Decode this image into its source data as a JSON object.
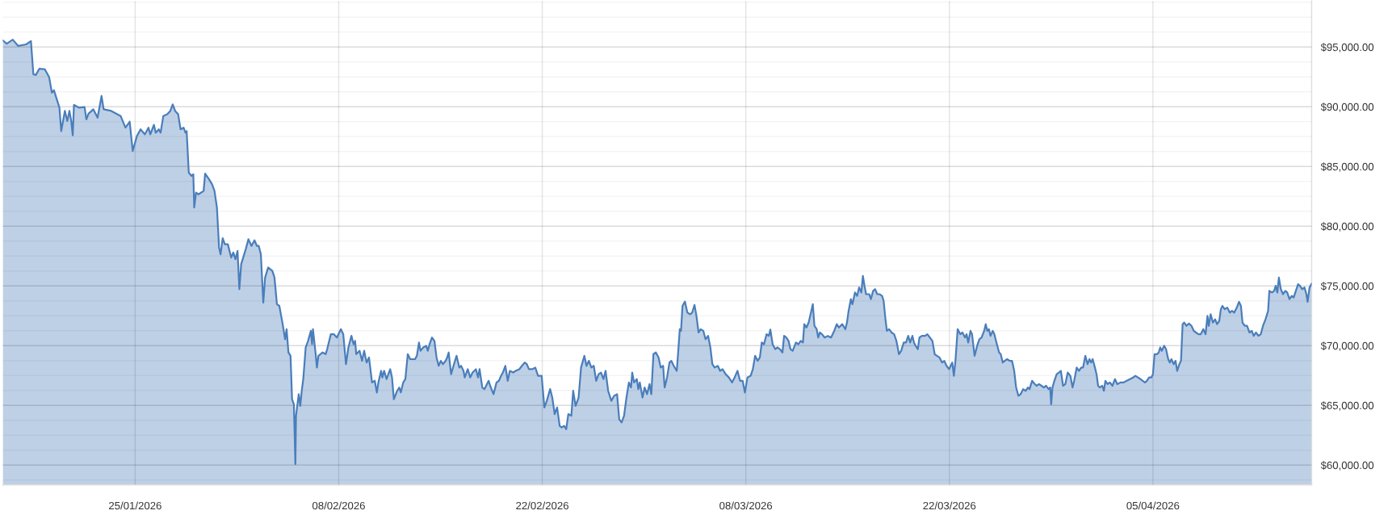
{
  "chart_data": {
    "type": "area",
    "x": [
      "2026-01-15T21:30",
      "2026-01-16T04:00",
      "2026-01-16T14:00",
      "2026-01-16T23:00",
      "2026-01-17T12:00",
      "2026-01-17T20:00",
      "2026-01-18T00:00",
      "2026-01-18T04:00",
      "2026-01-18T10:00",
      "2026-01-18T19:00",
      "2026-01-19T02:00",
      "2026-01-19T06:30",
      "2026-01-19T10:00",
      "2026-01-19T19:00",
      "2026-01-19T22:00",
      "2026-01-20T04:00",
      "2026-01-20T08:00",
      "2026-01-20T11:30",
      "2026-01-20T14:30",
      "2026-01-20T17:00",
      "2026-01-20T19:00",
      "2026-01-21T03:00",
      "2026-01-21T12:30",
      "2026-01-21T15:30",
      "2026-01-21T19:00",
      "2026-01-22T03:00",
      "2026-01-22T10:00",
      "2026-01-22T16:30",
      "2026-01-22T20:00",
      "2026-01-23T08:30",
      "2026-01-24T00:00",
      "2026-01-24T08:00",
      "2026-01-24T15:00",
      "2026-01-24T20:00",
      "2026-01-25T03:00",
      "2026-01-25T09:00",
      "2026-01-25T16:00",
      "2026-01-25T22:00",
      "2026-01-26T01:00",
      "2026-01-26T07:00",
      "2026-01-26T10:00",
      "2026-01-26T15:00",
      "2026-01-26T18:00",
      "2026-01-26T22:30",
      "2026-01-27T05:00",
      "2026-01-27T10:00",
      "2026-01-27T14:00",
      "2026-01-27T18:00",
      "2026-01-27T23:00",
      "2026-01-28T03:00",
      "2026-01-28T08:00",
      "2026-01-28T11:00",
      "2026-01-28T13:00",
      "2026-01-28T16:30",
      "2026-01-28T21:00",
      "2026-01-29T00:00",
      "2026-01-29T01:30",
      "2026-01-29T04:30",
      "2026-01-29T08:30",
      "2026-01-29T17:00",
      "2026-01-29T19:30",
      "2026-01-30T02:00",
      "2026-01-30T07:00",
      "2026-01-30T11:00",
      "2026-01-30T15:00",
      "2026-01-30T18:30",
      "2026-01-30T21:00",
      "2026-01-31T00:30",
      "2026-01-31T04:00",
      "2026-01-31T09:00",
      "2026-01-31T14:30",
      "2026-01-31T18:00",
      "2026-01-31T21:30",
      "2026-02-01T01:00",
      "2026-02-01T04:00",
      "2026-02-01T07:00",
      "2026-02-01T14:30",
      "2026-02-01T19:00",
      "2026-02-02T00:00",
      "2026-02-02T05:00",
      "2026-02-02T09:00",
      "2026-02-02T12:00",
      "2026-02-02T15:30",
      "2026-02-02T19:30",
      "2026-02-02T22:30",
      "2026-02-03T03:30",
      "2026-02-03T10:30",
      "2026-02-03T14:00",
      "2026-02-03T18:00",
      "2026-02-03T22:00",
      "2026-02-04T03:30",
      "2026-02-04T07:30",
      "2026-02-04T10:00",
      "2026-02-04T13:00",
      "2026-02-04T16:30",
      "2026-02-04T19:00",
      "2026-02-04T22:00",
      "2026-02-05T00:30",
      "2026-02-05T01:30",
      "2026-02-05T06:00",
      "2026-02-05T08:30",
      "2026-02-05T11:00",
      "2026-02-05T13:30",
      "2026-02-05T17:30",
      "2026-02-05T21:30",
      "2026-02-06T02:00",
      "2026-02-06T04:00",
      "2026-02-06T05:30",
      "2026-02-06T10:00",
      "2026-02-06T12:00",
      "2026-02-06T14:30",
      "2026-02-06T21:30",
      "2026-02-07T02:30",
      "2026-02-07T05:00",
      "2026-02-07T11:00",
      "2026-02-07T16:00",
      "2026-02-07T21:00",
      "2026-02-08T03:30",
      "2026-02-08T07:30",
      "2026-02-08T12:00",
      "2026-02-08T16:00",
      "2026-02-08T21:00",
      "2026-02-09T00:30",
      "2026-02-09T03:00",
      "2026-02-09T05:00",
      "2026-02-09T10:30",
      "2026-02-09T14:30",
      "2026-02-09T18:00",
      "2026-02-09T22:00",
      "2026-02-10T02:00",
      "2026-02-10T07:00",
      "2026-02-10T11:30",
      "2026-02-10T15:00",
      "2026-02-10T17:30",
      "2026-02-10T22:00",
      "2026-02-11T00:00",
      "2026-02-11T03:00",
      "2026-02-11T07:00",
      "2026-02-11T13:00",
      "2026-02-11T16:00",
      "2026-02-11T19:00",
      "2026-02-12T00:30",
      "2026-02-12T04:00",
      "2026-02-12T06:30",
      "2026-02-12T10:30",
      "2026-02-12T14:00",
      "2026-02-12T18:00",
      "2026-02-12T22:00",
      "2026-02-13T06:00",
      "2026-02-13T09:00",
      "2026-02-13T12:30",
      "2026-02-13T15:00",
      "2026-02-13T19:30",
      "2026-02-14T00:30",
      "2026-02-14T03:00",
      "2026-02-14T06:00",
      "2026-02-14T10:00",
      "2026-02-14T14:00",
      "2026-02-14T17:30",
      "2026-02-14T21:00",
      "2026-02-15T00:30",
      "2026-02-15T04:00",
      "2026-02-15T08:30",
      "2026-02-15T11:00",
      "2026-02-15T13:30",
      "2026-02-15T17:30",
      "2026-02-15T21:30",
      "2026-02-16T02:30",
      "2026-02-16T07:00",
      "2026-02-16T10:00",
      "2026-02-16T14:00",
      "2026-02-16T16:00",
      "2026-02-16T21:00",
      "2026-02-17T01:00",
      "2026-02-17T05:00",
      "2026-02-17T10:30",
      "2026-02-17T14:00",
      "2026-02-17T16:30",
      "2026-02-17T21:00",
      "2026-02-18T00:30",
      "2026-02-18T07:30",
      "2026-02-18T10:00",
      "2026-02-18T15:30",
      "2026-02-18T20:30",
      "2026-02-19T00:30",
      "2026-02-19T04:00",
      "2026-02-19T07:00",
      "2026-02-19T11:00",
      "2026-02-19T15:00",
      "2026-02-19T18:30",
      "2026-02-20T00:00",
      "2026-02-20T04:00",
      "2026-02-20T10:00",
      "2026-02-20T14:30",
      "2026-02-20T19:00",
      "2026-02-20T22:30",
      "2026-02-21T02:00",
      "2026-02-21T07:30",
      "2026-02-21T12:30",
      "2026-02-21T17:00",
      "2026-02-21T23:00",
      "2026-02-22T03:30",
      "2026-02-22T07:30",
      "2026-02-22T13:00",
      "2026-02-22T16:30",
      "2026-02-22T20:30",
      "2026-02-23T00:30",
      "2026-02-23T04:45",
      "2026-02-23T08:00",
      "2026-02-23T12:00",
      "2026-02-23T15:30",
      "2026-02-23T19:00",
      "2026-02-24T00:00",
      "2026-02-24T03:00",
      "2026-02-24T07:00",
      "2026-02-24T12:00",
      "2026-02-24T16:00",
      "2026-02-24T21:30",
      "2026-02-25T01:00",
      "2026-02-25T05:00",
      "2026-02-25T09:00",
      "2026-02-25T13:00",
      "2026-02-25T17:00",
      "2026-02-25T21:00",
      "2026-02-26T01:00",
      "2026-02-26T05:00",
      "2026-02-26T08:30",
      "2026-02-26T12:45",
      "2026-02-26T18:00",
      "2026-02-26T22:30",
      "2026-02-27T03:30",
      "2026-02-27T07:00",
      "2026-02-27T11:00",
      "2026-02-27T15:00",
      "2026-02-27T19:00",
      "2026-02-27T23:00",
      "2026-02-28T02:30",
      "2026-02-28T04:30",
      "2026-02-28T07:30",
      "2026-02-28T12:00",
      "2026-02-28T14:30",
      "2026-02-28T17:00",
      "2026-02-28T21:30",
      "2026-03-01T01:00",
      "2026-03-01T05:00",
      "2026-03-01T09:00",
      "2026-03-01T12:00",
      "2026-03-01T15:30",
      "2026-03-01T19:30",
      "2026-03-02T00:00",
      "2026-03-02T03:30",
      "2026-03-02T07:30",
      "2026-03-02T10:00",
      "2026-03-02T14:00",
      "2026-03-02T18:00",
      "2026-03-02T21:00",
      "2026-03-03T01:00",
      "2026-03-03T06:00",
      "2026-03-03T08:30",
      "2026-03-03T11:00",
      "2026-03-03T13:00",
      "2026-03-03T15:30",
      "2026-03-03T19:30",
      "2026-03-03T23:30",
      "2026-03-04T04:00",
      "2026-03-04T07:30",
      "2026-03-04T11:15",
      "2026-03-04T14:30",
      "2026-03-04T18:00",
      "2026-03-04T21:30",
      "2026-03-05T01:50",
      "2026-03-05T05:30",
      "2026-03-05T09:45",
      "2026-03-05T13:30",
      "2026-03-05T16:45",
      "2026-03-05T20:30",
      "2026-03-06T01:45",
      "2026-03-06T05:30",
      "2026-03-06T09:30",
      "2026-03-06T14:45",
      "2026-03-06T20:00",
      "2026-03-07T01:20",
      "2026-03-07T05:30",
      "2026-03-07T10:15",
      "2026-03-07T14:30",
      "2026-03-07T18:45",
      "2026-03-07T22:30",
      "2026-03-08T02:40",
      "2026-03-08T08:00",
      "2026-03-08T11:35",
      "2026-03-08T15:20",
      "2026-03-08T19:30",
      "2026-03-08T23:10",
      "2026-03-09T02:20",
      "2026-03-09T06:00",
      "2026-03-09T10:15",
      "2026-03-09T14:00",
      "2026-03-09T16:30",
      "2026-03-09T20:15",
      "2026-03-10T00:30",
      "2026-03-10T04:10",
      "2026-03-10T08:20",
      "2026-03-10T12:30",
      "2026-03-10T15:10",
      "2026-03-10T18:50",
      "2026-03-10T22:30",
      "2026-03-11T01:40",
      "2026-03-11T05:20",
      "2026-03-11T10:45",
      "2026-03-11T14:50",
      "2026-03-11T18:35",
      "2026-03-11T22:15",
      "2026-03-12T00:30",
      "2026-03-12T04:05",
      "2026-03-12T07:45",
      "2026-03-12T11:30",
      "2026-03-12T14:35",
      "2026-03-12T17:15",
      "2026-03-12T21:00",
      "2026-03-12T23:30",
      "2026-03-13T02:10",
      "2026-03-13T05:50",
      "2026-03-13T10:05",
      "2026-03-13T15:20",
      "2026-03-13T20:40",
      "2026-03-14T01:55",
      "2026-03-14T06:05",
      "2026-03-14T09:50",
      "2026-03-14T15:05",
      "2026-03-14T20:20",
      "2026-03-14T23:00",
      "2026-03-15T01:40",
      "2026-03-15T05:20",
      "2026-03-15T08:00",
      "2026-03-15T12:10",
      "2026-03-15T15:50",
      "2026-03-15T19:00",
      "2026-03-15T22:40",
      "2026-03-16T01:15",
      "2026-03-16T03:55",
      "2026-03-16T06:30",
      "2026-03-16T11:50",
      "2026-03-16T14:25",
      "2026-03-16T18:10",
      "2026-03-16T21:20",
      "2026-03-17T01:00",
      "2026-03-17T04:40",
      "2026-03-17T08:55",
      "2026-03-17T11:30",
      "2026-03-17T14:10",
      "2026-03-17T16:50",
      "2026-03-17T20:30",
      "2026-03-18T00:40",
      "2026-03-18T04:50",
      "2026-03-18T08:35",
      "2026-03-18T12:45",
      "2026-03-18T16:30",
      "2026-03-18T20:40",
      "2026-03-19T00:25",
      "2026-03-19T04:05",
      "2026-03-19T07:15",
      "2026-03-19T11:00",
      "2026-03-19T13:35",
      "2026-03-19T16:15",
      "2026-03-19T19:55",
      "2026-03-19T22:35",
      "2026-03-20T02:40",
      "2026-03-20T07:55",
      "2026-03-20T11:40",
      "2026-03-20T15:50",
      "2026-03-20T20:00",
      "2026-03-20T23:45",
      "2026-03-21T03:30",
      "2026-03-21T07:40",
      "2026-03-21T12:00",
      "2026-03-21T15:35",
      "2026-03-21T19:15",
      "2026-03-21T23:30",
      "2026-03-22T02:05",
      "2026-03-22T04:45",
      "2026-03-22T07:25",
      "2026-03-22T10:00",
      "2026-03-22T13:40",
      "2026-03-22T17:55",
      "2026-03-22T21:35",
      "2026-03-23T01:50",
      "2026-03-23T04:25",
      "2026-03-23T07:05",
      "2026-03-23T10:50",
      "2026-03-23T13:25",
      "2026-03-23T17:35",
      "2026-03-23T21:50",
      "2026-03-24T01:30",
      "2026-03-24T05:10",
      "2026-03-24T09:25",
      "2026-03-24T12:00",
      "2026-03-24T14:40",
      "2026-03-24T17:15",
      "2026-03-24T19:55",
      "2026-03-24T23:35",
      "2026-03-25T02:10",
      "2026-03-25T06:25",
      "2026-03-25T10:05",
      "2026-03-25T12:45",
      "2026-03-25T16:05",
      "2026-03-25T19:10",
      "2026-03-25T23:25",
      "2026-03-26T03:40",
      "2026-03-26T07:25",
      "2026-03-26T11:00",
      "2026-03-26T14:10",
      "2026-03-26T18:00",
      "2026-03-26T21:40",
      "2026-03-27T01:45",
      "2026-03-27T06:00",
      "2026-03-27T09:40",
      "2026-03-27T12:20",
      "2026-03-27T16:30",
      "2026-03-27T20:10",
      "2026-03-28T00:00",
      "2026-03-28T04:00",
      "2026-03-28T08:10",
      "2026-03-28T11:50",
      "2026-03-28T15:35",
      "2026-03-28T19:50",
      "2026-03-28T22:25",
      "2026-03-29T00:00",
      "2026-03-29T02:10",
      "2026-03-29T05:20",
      "2026-03-29T09:05",
      "2026-03-29T12:45",
      "2026-03-29T16:00",
      "2026-03-29T19:40",
      "2026-03-29T23:20",
      "2026-03-30T03:25",
      "2026-03-30T07:40",
      "2026-03-30T11:20",
      "2026-03-30T14:00",
      "2026-03-30T18:10",
      "2026-03-30T21:50",
      "2026-03-31T01:35",
      "2026-03-31T04:40",
      "2026-03-31T08:25",
      "2026-03-31T12:05",
      "2026-03-31T15:15",
      "2026-03-31T17:50",
      "2026-03-31T20:30",
      "2026-04-01T00:15",
      "2026-04-01T02:55",
      "2026-04-01T05:30",
      "2026-04-01T08:10",
      "2026-04-01T12:20",
      "2026-04-01T15:00",
      "2026-04-01T17:35",
      "2026-04-01T21:15",
      "2026-04-02T01:00",
      "2026-04-02T05:10",
      "2026-04-02T09:25",
      "2026-04-02T13:05",
      "2026-04-02T18:20",
      "2026-04-02T23:35",
      "2026-04-03T04:50",
      "2026-04-03T10:05",
      "2026-04-03T15:20",
      "2026-04-03T19:00",
      "2026-04-03T23:15",
      "2026-04-04T03:30",
      "2026-04-04T07:10",
      "2026-04-04T10:50",
      "2026-04-04T14:00",
      "2026-04-04T17:40",
      "2026-04-04T21:25",
      "2026-04-05T00:00",
      "2026-04-05T02:40",
      "2026-04-05T06:50",
      "2026-04-05T09:30",
      "2026-04-05T12:00",
      "2026-04-05T14:45",
      "2026-04-05T18:25",
      "2026-04-05T21:35",
      "2026-04-06T01:15",
      "2026-04-06T03:55",
      "2026-04-06T06:30",
      "2026-04-06T10:15",
      "2026-04-06T13:20",
      "2026-04-06T16:00",
      "2026-04-06T19:40",
      "2026-04-06T22:20",
      "2026-04-07T01:00",
      "2026-04-07T03:35",
      "2026-04-07T07:15",
      "2026-04-07T11:30",
      "2026-04-07T15:40",
      "2026-04-07T19:25",
      "2026-04-07T23:00",
      "2026-04-08T03:15",
      "2026-04-08T07:00",
      "2026-04-08T11:10",
      "2026-04-08T14:50",
      "2026-04-08T18:00",
      "2026-04-08T20:05",
      "2026-04-08T23:15",
      "2026-04-09T02:55",
      "2026-04-09T06:40",
      "2026-04-09T09:50",
      "2026-04-09T13:30",
      "2026-04-09T16:05",
      "2026-04-09T18:45",
      "2026-04-09T22:25",
      "2026-04-10T02:40",
      "2026-04-10T06:50",
      "2026-04-10T10:30",
      "2026-04-10T14:15",
      "2026-04-10T18:25",
      "2026-04-10T22:05",
      "2026-04-11T01:15",
      "2026-04-11T03:50",
      "2026-04-11T07:30",
      "2026-04-11T11:15",
      "2026-04-11T15:25",
      "2026-04-11T19:10",
      "2026-04-11T22:20",
      "2026-04-12T02:00",
      "2026-04-12T06:15",
      "2026-04-12T10:00",
      "2026-04-12T13:40",
      "2026-04-12T17:50",
      "2026-04-12T22:05",
      "2026-04-13T00:10",
      "2026-04-13T04:25",
      "2026-04-13T08:05",
      "2026-04-13T10:40",
      "2026-04-13T13:20",
      "2026-04-13T15:55",
      "2026-04-13T19:05",
      "2026-04-13T22:45",
      "2026-04-14T02:30",
      "2026-04-14T05:40",
      "2026-04-14T09:20",
      "2026-04-14T13:05",
      "2026-04-14T16:15",
      "2026-04-14T19:55",
      "2026-04-14T23:35",
      "2026-04-15T02:45",
      "2026-04-15T06:25",
      "2026-04-15T10:10",
      "2026-04-15T13:20",
      "2026-04-15T15:20",
      "2026-04-15T18:30",
      "2026-04-15T22:00"
    ],
    "series": [
      {
        "color": "#4a7ebb",
        "values": [
          95560,
          95280,
          95620,
          95090,
          95220,
          95500,
          92720,
          92660,
          93190,
          93130,
          92490,
          91180,
          91380,
          89930,
          87970,
          89650,
          88810,
          89650,
          88810,
          87610,
          90150,
          89930,
          89980,
          88950,
          89420,
          89790,
          89090,
          90900,
          89790,
          89650,
          89230,
          88250,
          88750,
          86300,
          87560,
          88110,
          87690,
          88250,
          87690,
          88480,
          87830,
          88110,
          87830,
          89230,
          89370,
          89650,
          90200,
          89650,
          89370,
          88110,
          88250,
          87830,
          87970,
          84490,
          84210,
          84350,
          81560,
          82810,
          82670,
          82950,
          84400,
          83930,
          83510,
          82950,
          81560,
          78210,
          77650,
          78990,
          78490,
          78490,
          77380,
          77800,
          77240,
          77930,
          74730,
          76820,
          78070,
          78910,
          78350,
          78820,
          78350,
          78350,
          77650,
          73610,
          75700,
          76540,
          76260,
          75700,
          73470,
          73330,
          71800,
          70540,
          71380,
          69430,
          69150,
          65520,
          65100,
          60080,
          64130,
          65940,
          64960,
          66220,
          67200,
          69850,
          70400,
          71240,
          70120,
          71380,
          69290,
          68170,
          69150,
          69430,
          69290,
          69710,
          70960,
          70960,
          70680,
          71380,
          70960,
          68450,
          69850,
          70820,
          70120,
          70400,
          69290,
          69570,
          68730,
          69570,
          68590,
          69010,
          66920,
          67060,
          66080,
          66920,
          67890,
          67340,
          67890,
          67200,
          68030,
          67340,
          65520,
          66220,
          66500,
          66080,
          66920,
          67200,
          69290,
          68870,
          68870,
          69150,
          70260,
          69570,
          69850,
          69990,
          69570,
          70120,
          70680,
          70400,
          69010,
          68310,
          68730,
          68450,
          68730,
          69010,
          69430,
          67610,
          68310,
          69150,
          68170,
          68310,
          67890,
          67340,
          68030,
          67340,
          67750,
          68030,
          67340,
          68030,
          66500,
          66360,
          67060,
          66640,
          65940,
          66920,
          67060,
          67480,
          67750,
          68310,
          67060,
          67890,
          67750,
          67890,
          68030,
          68310,
          68590,
          68450,
          68030,
          68030,
          68170,
          67480,
          67480,
          64830,
          65380,
          66360,
          65660,
          64270,
          64830,
          63290,
          63150,
          63290,
          63010,
          64270,
          64130,
          66220,
          64960,
          65660,
          68170,
          69150,
          68310,
          68730,
          68170,
          68310,
          67060,
          67610,
          67750,
          67200,
          67890,
          66220,
          65380,
          65800,
          65940,
          63850,
          63570,
          64130,
          65660,
          66920,
          66500,
          67750,
          66920,
          67200,
          66360,
          66920,
          65660,
          66500,
          65940,
          66780,
          65940,
          69290,
          69430,
          69010,
          68170,
          68310,
          66500,
          67340,
          68590,
          68730,
          68310,
          67890,
          69570,
          71380,
          71240,
          73330,
          73690,
          72770,
          72630,
          72770,
          73410,
          72490,
          71100,
          71380,
          71240,
          70540,
          70820,
          69850,
          68450,
          68170,
          68310,
          67890,
          68030,
          67610,
          67340,
          66920,
          67340,
          67890,
          67060,
          67060,
          66080,
          67340,
          67480,
          68030,
          69150,
          68730,
          69010,
          70260,
          70120,
          70960,
          70820,
          71350,
          70120,
          69710,
          69850,
          69710,
          69430,
          70820,
          70680,
          70400,
          69710,
          69570,
          70260,
          70120,
          70400,
          70260,
          71800,
          71520,
          71940,
          72770,
          73470,
          71660,
          71380,
          70680,
          71100,
          70960,
          70680,
          70820,
          70680,
          71240,
          71800,
          71520,
          71800,
          71380,
          71940,
          72910,
          73890,
          73470,
          74450,
          74170,
          74870,
          74450,
          75840,
          75010,
          74310,
          74310,
          73890,
          74590,
          74730,
          74310,
          74310,
          74170,
          73750,
          72360,
          71240,
          71380,
          71100,
          70960,
          70400,
          69290,
          69570,
          70260,
          70260,
          70820,
          70260,
          70820,
          70260,
          69990,
          69710,
          70680,
          70820,
          70820,
          70960,
          70680,
          70400,
          69290,
          69150,
          69010,
          68590,
          68730,
          68310,
          68030,
          68310,
          68590,
          67480,
          68730,
          71380,
          70960,
          71100,
          70680,
          70960,
          70260,
          71240,
          70960,
          69150,
          69990,
          70540,
          70680,
          71240,
          71800,
          71240,
          71380,
          70820,
          71240,
          70960,
          70120,
          69430,
          69290,
          68590,
          68730,
          68870,
          68730,
          68730,
          67890,
          66500,
          65800,
          65940,
          66360,
          66220,
          66500,
          66360,
          67060,
          66830,
          66640,
          66780,
          66640,
          66500,
          66640,
          66360,
          66500,
          65100,
          66500,
          67060,
          67610,
          67750,
          67890,
          66640,
          66780,
          67750,
          67480,
          66500,
          67060,
          68170,
          67890,
          68170,
          68170,
          69150,
          68450,
          68870,
          68590,
          68870,
          68170,
          67610,
          66640,
          66500,
          66640,
          66220,
          67060,
          66780,
          66920,
          66640,
          67200,
          66780,
          66920,
          66920,
          67060,
          67200,
          67340,
          67480,
          67340,
          67200,
          67060,
          66920,
          67060,
          67340,
          67340,
          67610,
          69290,
          69290,
          69430,
          69850,
          69570,
          69990,
          69710,
          68870,
          68590,
          68870,
          68450,
          68730,
          67890,
          68450,
          68730,
          71800,
          71940,
          71660,
          71850,
          71660,
          71240,
          71100,
          70960,
          70960,
          71380,
          70960,
          72490,
          71660,
          72630,
          71940,
          72210,
          71800,
          72070,
          73050,
          73330,
          73050,
          73190,
          72770,
          72910,
          72770,
          73190,
          73670,
          73330,
          71940,
          71660,
          71660,
          71100,
          71240,
          70820,
          71100,
          70820,
          70960,
          71660,
          72210,
          72910,
          74590,
          74450,
          74590,
          75010,
          74450,
          75700,
          74730,
          74310,
          74590,
          74450,
          73890,
          74170,
          74030,
          74590,
          75150,
          75010,
          74730,
          74870,
          74310,
          73670,
          74870,
          75200
        ]
      }
    ],
    "xlim": [
      "2026-01-15T21:30",
      "2026-04-15T22:00"
    ],
    "xticks": [
      {
        "value": "2026-01-25",
        "label": "25/01/2026"
      },
      {
        "value": "2026-02-08",
        "label": "08/02/2026"
      },
      {
        "value": "2026-02-22",
        "label": "22/02/2026"
      },
      {
        "value": "2026-03-08",
        "label": "08/03/2026"
      },
      {
        "value": "2026-03-22",
        "label": "22/03/2026"
      },
      {
        "value": "2026-04-05",
        "label": "05/04/2026"
      }
    ],
    "ylim": [
      58350,
      98850
    ],
    "yticks": [
      {
        "value": 58750,
        "label": null
      },
      {
        "value": 60000,
        "label": "$60,000.00"
      },
      {
        "value": 61250,
        "label": null
      },
      {
        "value": 62500,
        "label": null
      },
      {
        "value": 63750,
        "label": null
      },
      {
        "value": 65000,
        "label": "$65,000.00"
      },
      {
        "value": 66250,
        "label": null
      },
      {
        "value": 67500,
        "label": null
      },
      {
        "value": 68750,
        "label": null
      },
      {
        "value": 70000,
        "label": "$70,000.00"
      },
      {
        "value": 71250,
        "label": null
      },
      {
        "value": 72500,
        "label": null
      },
      {
        "value": 73750,
        "label": null
      },
      {
        "value": 75000,
        "label": "$75,000.00"
      },
      {
        "value": 76250,
        "label": null
      },
      {
        "value": 77500,
        "label": null
      },
      {
        "value": 78750,
        "label": null
      },
      {
        "value": 80000,
        "label": "$80,000.00"
      },
      {
        "value": 81250,
        "label": null
      },
      {
        "value": 82500,
        "label": null
      },
      {
        "value": 83750,
        "label": null
      },
      {
        "value": 85000,
        "label": "$85,000.00"
      },
      {
        "value": 86250,
        "label": null
      },
      {
        "value": 87500,
        "label": null
      },
      {
        "value": 88750,
        "label": null
      },
      {
        "value": 90000,
        "label": "$90,000.00"
      },
      {
        "value": 91250,
        "label": null
      },
      {
        "value": 92500,
        "label": null
      },
      {
        "value": 93750,
        "label": null
      },
      {
        "value": 95000,
        "label": "$95,000.00"
      },
      {
        "value": 96250,
        "label": null
      },
      {
        "value": 97500,
        "label": null
      },
      {
        "value": 98750,
        "label": null
      }
    ],
    "grid": true
  }
}
